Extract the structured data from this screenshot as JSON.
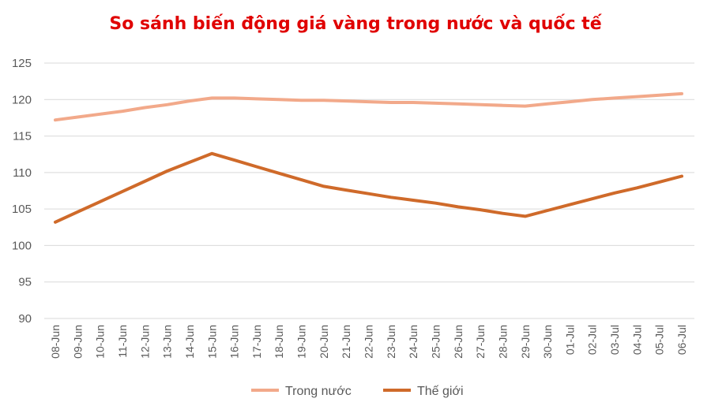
{
  "colors": {
    "title": "#e00000",
    "domestic": "#f2a98a",
    "world": "#cf6a2a"
  },
  "chart_data": {
    "type": "line",
    "title": "So sánh biến động giá vàng trong nước và quốc tế",
    "xlabel": "",
    "ylabel": "",
    "ylim": [
      90,
      125
    ],
    "yticks": [
      90,
      95,
      100,
      105,
      110,
      115,
      120,
      125
    ],
    "grid": true,
    "legend_position": "bottom",
    "categories": [
      "08-Jun",
      "09-Jun",
      "10-Jun",
      "11-Jun",
      "12-Jun",
      "13-Jun",
      "14-Jun",
      "15-Jun",
      "16-Jun",
      "17-Jun",
      "18-Jun",
      "19-Jun",
      "20-Jun",
      "21-Jun",
      "22-Jun",
      "23-Jun",
      "24-Jun",
      "25-Jun",
      "26-Jun",
      "27-Jun",
      "28-Jun",
      "29-Jun",
      "30-Jun",
      "01-Jul",
      "02-Jul",
      "03-Jul",
      "04-Jul",
      "05-Jul",
      "06-Jul"
    ],
    "series": [
      {
        "name": "Trong nước",
        "color": "#f2a98a",
        "values": [
          117.2,
          117.6,
          118.0,
          118.4,
          118.9,
          119.3,
          119.8,
          120.2,
          120.2,
          120.1,
          120.0,
          119.9,
          119.9,
          119.8,
          119.7,
          119.6,
          119.6,
          119.5,
          119.4,
          119.3,
          119.2,
          119.1,
          119.4,
          119.7,
          120.0,
          120.2,
          120.4,
          120.6,
          120.8
        ]
      },
      {
        "name": "Thế giới",
        "color": "#cf6a2a",
        "values": [
          103.2,
          104.6,
          106.0,
          107.4,
          108.8,
          110.2,
          111.4,
          112.6,
          111.7,
          110.8,
          109.9,
          109.0,
          108.1,
          107.6,
          107.1,
          106.6,
          106.2,
          105.8,
          105.3,
          104.9,
          104.4,
          104.0,
          104.8,
          105.6,
          106.4,
          107.2,
          107.9,
          108.7,
          109.5
        ]
      }
    ]
  }
}
